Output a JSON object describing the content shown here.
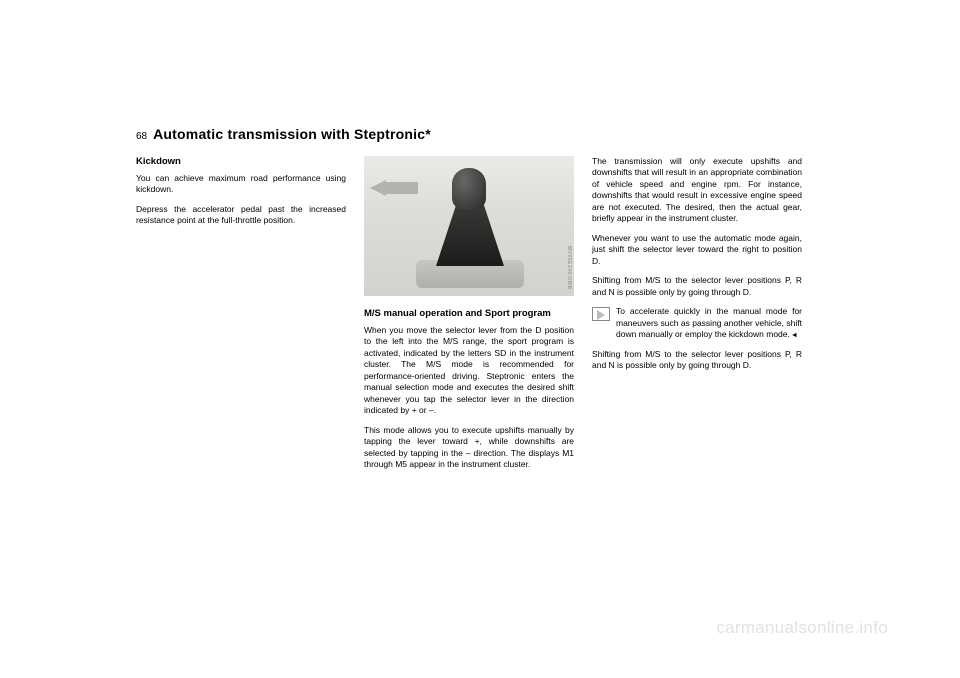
{
  "page_number": "68",
  "title": "Automatic transmission with Steptronic*",
  "col1": {
    "h_kickdown": "Kickdown",
    "p1": "You can achieve maximum road perfor­mance using kickdown.",
    "p2": "Depress the accelerator pedal past the increased resistance point at the full-throttle position."
  },
  "col2": {
    "side_code": "MV05E140-UMB",
    "h_ms": "M/S manual operation and Sport program",
    "p1": "When you move the selector lever from the D position to the left into the M/S range, the sport program is activated, indicated by the letters SD in the instru­ment cluster. The M/S mode is recom­mended for performance-oriented driv­ing. Steptronic enters the manual selection mode and executes the desired shift whenever you tap the selector lever in the direction indicated by + or –.",
    "p2": "This mode allows you to execute upshifts manually by tapping the lever toward +, while downshifts are selected by tapping in the – direction. The dis­plays M1 through M5 appear in the instrument cluster."
  },
  "col3": {
    "p1": "The transmission will only execute upshifts and downshifts that will result in an appropriate combination of vehi­cle speed and engine rpm. For instance, downshifts that would result in excessive engine speed are not exe­cuted. The desired, then the actual gear, briefly appear in the instrument cluster.",
    "p2": "Whenever you want to use the auto­matic mode again, just shift the selector lever toward the right to position D.",
    "p3": "Shifting from M/S to the selector lever positions P, R and N is possible only by going through D.",
    "tip": "To accelerate quickly in the man­ual mode for maneuvers such as passing another vehicle, shift down manually or employ the kickdown mode.",
    "p4": "Shifting from M/S to the selector lever positions P, R and N is possible only by going through D."
  },
  "watermark": "carmanualsonline.info"
}
